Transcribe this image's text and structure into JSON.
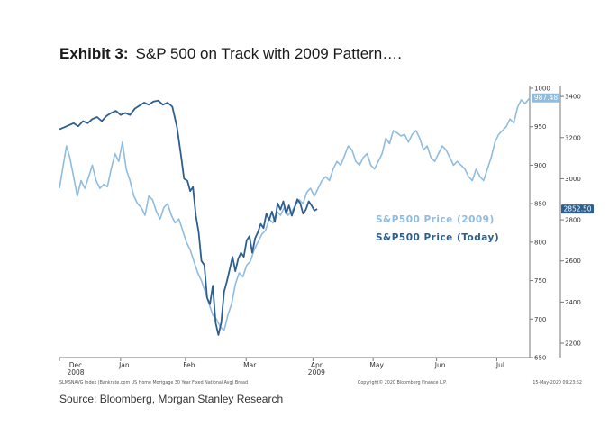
{
  "header": {
    "exhibit_label": "Exhibit 3:",
    "title": "S&P 500 on Track with 2009 Pattern…."
  },
  "source": "Source: Bloomberg, Morgan Stanley Research",
  "footnotes": {
    "left": "SLMSNAVG Index (Bankrate.com US Home Mortgage 30 Year Fixed National Avg) Bread",
    "center": "Copyright© 2020 Bloomberg Finance L.P.",
    "right": "15-May-2020 09:23:52"
  },
  "colors": {
    "series_2009": "#8fbcdf",
    "series_today": "#2c5f90",
    "axis": "#777777",
    "badge_2009": "#8fbcdf",
    "badge_today": "#2c5f90"
  },
  "chart_data": {
    "type": "line",
    "title": "S&P 500 on Track with 2009 Pattern….",
    "x_ticks": [
      {
        "label": "Dec",
        "sublabel": "2008",
        "pos": 0.0
      },
      {
        "label": "Jan",
        "sublabel": "",
        "pos": 0.13
      },
      {
        "label": "Feb",
        "sublabel": "",
        "pos": 0.268
      },
      {
        "label": "Mar",
        "sublabel": "",
        "pos": 0.397
      },
      {
        "label": "Apr",
        "sublabel": "2009",
        "pos": 0.539
      },
      {
        "label": "May",
        "sublabel": "",
        "pos": 0.667
      },
      {
        "label": "Jun",
        "sublabel": "",
        "pos": 0.802
      },
      {
        "label": "Jul",
        "sublabel": "",
        "pos": 0.93
      }
    ],
    "left_axis": {
      "series": "S&P500 Price (2009)",
      "ylim": [
        650,
        1000
      ],
      "ticks": [
        650,
        700,
        750,
        800,
        850,
        900,
        950,
        1000
      ]
    },
    "right_axis": {
      "series": "S&P500 Price (Today)",
      "ylim": [
        2130,
        3440
      ],
      "ticks": [
        2200,
        2400,
        2600,
        2800,
        3000,
        3200,
        3400
      ]
    },
    "series": [
      {
        "name": "S&P500 Price (2009)",
        "axis": "left",
        "last_value_label": "987.48",
        "points": [
          [
            0.0,
            870
          ],
          [
            0.008,
            900
          ],
          [
            0.015,
            925
          ],
          [
            0.022,
            910
          ],
          [
            0.03,
            885
          ],
          [
            0.038,
            860
          ],
          [
            0.046,
            880
          ],
          [
            0.054,
            870
          ],
          [
            0.062,
            885
          ],
          [
            0.07,
            900
          ],
          [
            0.078,
            880
          ],
          [
            0.086,
            870
          ],
          [
            0.094,
            875
          ],
          [
            0.102,
            872
          ],
          [
            0.11,
            895
          ],
          [
            0.118,
            915
          ],
          [
            0.126,
            905
          ],
          [
            0.134,
            930
          ],
          [
            0.142,
            895
          ],
          [
            0.15,
            880
          ],
          [
            0.158,
            860
          ],
          [
            0.166,
            850
          ],
          [
            0.174,
            845
          ],
          [
            0.182,
            835
          ],
          [
            0.19,
            860
          ],
          [
            0.198,
            855
          ],
          [
            0.206,
            840
          ],
          [
            0.214,
            830
          ],
          [
            0.222,
            845
          ],
          [
            0.23,
            850
          ],
          [
            0.238,
            835
          ],
          [
            0.246,
            825
          ],
          [
            0.254,
            830
          ],
          [
            0.262,
            815
          ],
          [
            0.27,
            800
          ],
          [
            0.278,
            790
          ],
          [
            0.286,
            775
          ],
          [
            0.294,
            760
          ],
          [
            0.302,
            750
          ],
          [
            0.31,
            735
          ],
          [
            0.318,
            720
          ],
          [
            0.326,
            705
          ],
          [
            0.334,
            700
          ],
          [
            0.342,
            690
          ],
          [
            0.35,
            685
          ],
          [
            0.358,
            705
          ],
          [
            0.366,
            720
          ],
          [
            0.374,
            745
          ],
          [
            0.382,
            760
          ],
          [
            0.39,
            755
          ],
          [
            0.398,
            770
          ],
          [
            0.406,
            775
          ],
          [
            0.414,
            790
          ],
          [
            0.422,
            800
          ],
          [
            0.43,
            810
          ],
          [
            0.438,
            815
          ],
          [
            0.446,
            830
          ],
          [
            0.454,
            825
          ],
          [
            0.462,
            840
          ],
          [
            0.47,
            835
          ],
          [
            0.478,
            845
          ],
          [
            0.486,
            835
          ],
          [
            0.494,
            840
          ],
          [
            0.502,
            848
          ],
          [
            0.51,
            855
          ],
          [
            0.518,
            850
          ],
          [
            0.526,
            865
          ],
          [
            0.534,
            870
          ],
          [
            0.542,
            860
          ],
          [
            0.55,
            870
          ],
          [
            0.558,
            880
          ],
          [
            0.566,
            885
          ],
          [
            0.574,
            880
          ],
          [
            0.582,
            895
          ],
          [
            0.59,
            905
          ],
          [
            0.598,
            900
          ],
          [
            0.606,
            912
          ],
          [
            0.614,
            925
          ],
          [
            0.622,
            920
          ],
          [
            0.63,
            905
          ],
          [
            0.638,
            900
          ],
          [
            0.646,
            910
          ],
          [
            0.654,
            915
          ],
          [
            0.662,
            900
          ],
          [
            0.67,
            895
          ],
          [
            0.678,
            905
          ],
          [
            0.686,
            915
          ],
          [
            0.694,
            935
          ],
          [
            0.702,
            928
          ],
          [
            0.71,
            945
          ],
          [
            0.718,
            942
          ],
          [
            0.726,
            938
          ],
          [
            0.734,
            940
          ],
          [
            0.742,
            930
          ],
          [
            0.75,
            940
          ],
          [
            0.758,
            945
          ],
          [
            0.766,
            935
          ],
          [
            0.774,
            920
          ],
          [
            0.782,
            925
          ],
          [
            0.79,
            910
          ],
          [
            0.798,
            905
          ],
          [
            0.806,
            915
          ],
          [
            0.814,
            925
          ],
          [
            0.822,
            920
          ],
          [
            0.83,
            910
          ],
          [
            0.838,
            900
          ],
          [
            0.846,
            905
          ],
          [
            0.854,
            900
          ],
          [
            0.862,
            895
          ],
          [
            0.87,
            885
          ],
          [
            0.878,
            880
          ],
          [
            0.886,
            895
          ],
          [
            0.894,
            885
          ],
          [
            0.902,
            880
          ],
          [
            0.91,
            895
          ],
          [
            0.918,
            910
          ],
          [
            0.926,
            930
          ],
          [
            0.934,
            940
          ],
          [
            0.942,
            945
          ],
          [
            0.95,
            950
          ],
          [
            0.958,
            960
          ],
          [
            0.966,
            955
          ],
          [
            0.974,
            975
          ],
          [
            0.982,
            985
          ],
          [
            0.99,
            980
          ],
          [
            1.0,
            987.48
          ]
        ]
      },
      {
        "name": "S&P500 Price (Today)",
        "axis": "right",
        "last_value_label": "2852.50",
        "points": [
          [
            0.0,
            3240
          ],
          [
            0.01,
            3250
          ],
          [
            0.02,
            3260
          ],
          [
            0.03,
            3270
          ],
          [
            0.04,
            3255
          ],
          [
            0.05,
            3280
          ],
          [
            0.06,
            3270
          ],
          [
            0.07,
            3290
          ],
          [
            0.08,
            3300
          ],
          [
            0.09,
            3280
          ],
          [
            0.1,
            3305
          ],
          [
            0.11,
            3320
          ],
          [
            0.12,
            3330
          ],
          [
            0.13,
            3310
          ],
          [
            0.14,
            3320
          ],
          [
            0.15,
            3310
          ],
          [
            0.16,
            3340
          ],
          [
            0.17,
            3355
          ],
          [
            0.18,
            3370
          ],
          [
            0.19,
            3360
          ],
          [
            0.2,
            3375
          ],
          [
            0.21,
            3380
          ],
          [
            0.22,
            3360
          ],
          [
            0.23,
            3370
          ],
          [
            0.24,
            3350
          ],
          [
            0.25,
            3250
          ],
          [
            0.258,
            3120
          ],
          [
            0.265,
            3000
          ],
          [
            0.272,
            2990
          ],
          [
            0.278,
            2940
          ],
          [
            0.284,
            2960
          ],
          [
            0.29,
            2820
          ],
          [
            0.296,
            2740
          ],
          [
            0.302,
            2600
          ],
          [
            0.308,
            2580
          ],
          [
            0.314,
            2420
          ],
          [
            0.32,
            2390
          ],
          [
            0.326,
            2480
          ],
          [
            0.332,
            2300
          ],
          [
            0.338,
            2240
          ],
          [
            0.344,
            2300
          ],
          [
            0.35,
            2450
          ],
          [
            0.356,
            2500
          ],
          [
            0.362,
            2560
          ],
          [
            0.368,
            2620
          ],
          [
            0.374,
            2550
          ],
          [
            0.38,
            2610
          ],
          [
            0.386,
            2640
          ],
          [
            0.392,
            2620
          ],
          [
            0.398,
            2700
          ],
          [
            0.404,
            2720
          ],
          [
            0.41,
            2640
          ],
          [
            0.416,
            2710
          ],
          [
            0.422,
            2740
          ],
          [
            0.428,
            2780
          ],
          [
            0.434,
            2760
          ],
          [
            0.44,
            2830
          ],
          [
            0.446,
            2800
          ],
          [
            0.452,
            2840
          ],
          [
            0.458,
            2790
          ],
          [
            0.464,
            2880
          ],
          [
            0.47,
            2850
          ],
          [
            0.476,
            2890
          ],
          [
            0.482,
            2830
          ],
          [
            0.488,
            2870
          ],
          [
            0.494,
            2820
          ],
          [
            0.5,
            2860
          ],
          [
            0.506,
            2900
          ],
          [
            0.512,
            2880
          ],
          [
            0.518,
            2830
          ],
          [
            0.524,
            2850
          ],
          [
            0.53,
            2890
          ],
          [
            0.536,
            2870
          ],
          [
            0.542,
            2845
          ],
          [
            0.548,
            2852.5
          ]
        ]
      }
    ]
  }
}
